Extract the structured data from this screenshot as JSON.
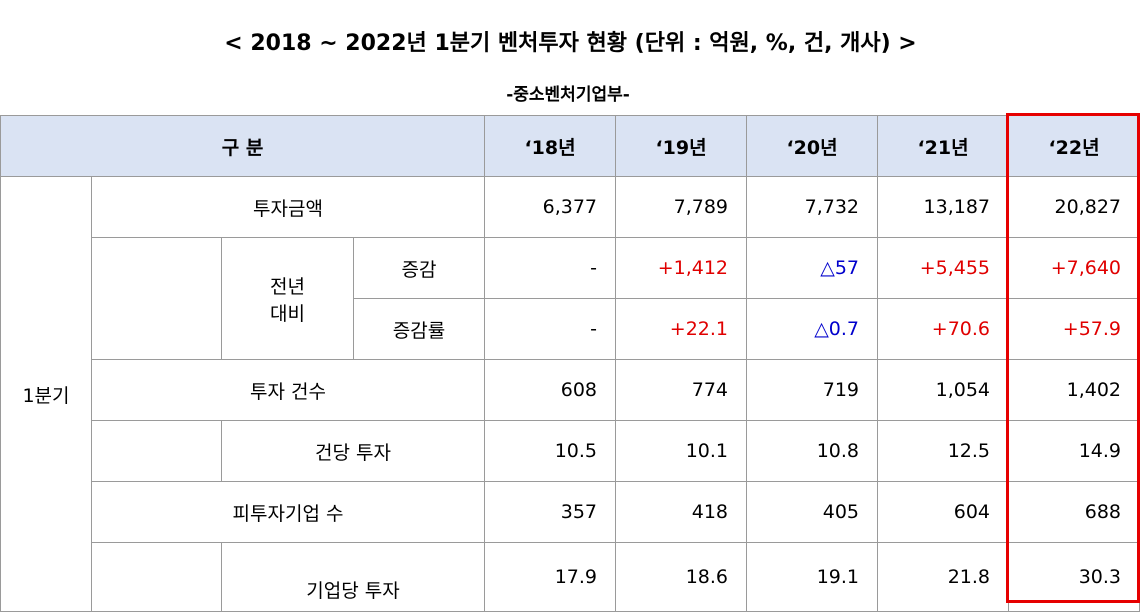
{
  "title": "< 2018 ~ 2022년 1분기 벤처투자 현황 (단위 : 억원, %, 건, 개사) >",
  "subtitle": "-중소벤처기업부-",
  "header": {
    "category": "구 분",
    "years": [
      "‘18년",
      "‘19년",
      "‘20년",
      "‘21년",
      "‘22년"
    ]
  },
  "group_label": "1분기",
  "rows": {
    "investment_amount": {
      "label": "투자금액",
      "values": [
        "6,377",
        "7,789",
        "7,732",
        "13,187",
        "20,827"
      ]
    },
    "yoy_label_line1": "전년",
    "yoy_label_line2": "대비",
    "change": {
      "label": "증감",
      "values": [
        "-",
        "+1,412",
        "△57",
        "+5,455",
        "+7,640"
      ]
    },
    "change_rate": {
      "label": "증감률",
      "values": [
        "-",
        "+22.1",
        "△0.7",
        "+70.6",
        "+57.9"
      ]
    },
    "investment_count": {
      "label": "투자 건수",
      "values": [
        "608",
        "774",
        "719",
        "1,054",
        "1,402"
      ]
    },
    "per_case": {
      "label": "건당 투자",
      "values": [
        "10.5",
        "10.1",
        "10.8",
        "12.5",
        "14.9"
      ]
    },
    "investee_count": {
      "label": "피투자기업 수",
      "values": [
        "357",
        "418",
        "405",
        "604",
        "688"
      ]
    },
    "per_company": {
      "label": "기업당 투자",
      "values": [
        "17.9",
        "18.6",
        "19.1",
        "21.8",
        "30.3"
      ]
    }
  },
  "colors": {
    "increase": "#e00000",
    "decrease": "#0000cc",
    "header_bg": "#dae3f3",
    "highlight": "#e60000"
  }
}
